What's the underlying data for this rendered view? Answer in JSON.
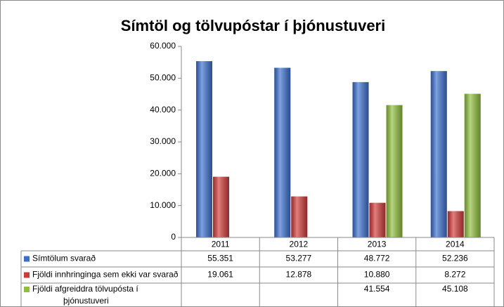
{
  "chart_data": {
    "type": "bar",
    "title": "Símtöl og tölvupóstar í þjónustuveri",
    "categories": [
      "2011",
      "2012",
      "2013",
      "2014"
    ],
    "series": [
      {
        "name": "Símtölum svarað",
        "color": "#3a6fd0",
        "values": [
          55351,
          53277,
          48772,
          52236
        ],
        "value_labels": [
          "55.351",
          "53.277",
          "48.772",
          "52.236"
        ]
      },
      {
        "name": "Fjöldi innhringinga sem ekki var svarað",
        "color": "#d23a38",
        "values": [
          19061,
          12878,
          10880,
          8272
        ],
        "value_labels": [
          "19.061",
          "12.878",
          "10.880",
          "8.272"
        ]
      },
      {
        "name": "Fjöldi afgreiddra tölvupósta í þjónustuveri",
        "color": "#8fc03c",
        "values": [
          null,
          null,
          41554,
          45108
        ],
        "value_labels": [
          null,
          null,
          "41.554",
          "45.108"
        ]
      }
    ],
    "ylim": [
      0,
      60000
    ],
    "yticks": [
      0,
      {
        "value": 10000,
        "label": "10.000"
      },
      {
        "value": 20000,
        "label": "20.000"
      },
      {
        "value": 30000,
        "label": "30.000"
      },
      {
        "value": 40000,
        "label": "40.000"
      },
      {
        "value": 50000,
        "label": "50.000"
      },
      {
        "value": 60000,
        "label": "60.000"
      }
    ],
    "grid": false
  }
}
